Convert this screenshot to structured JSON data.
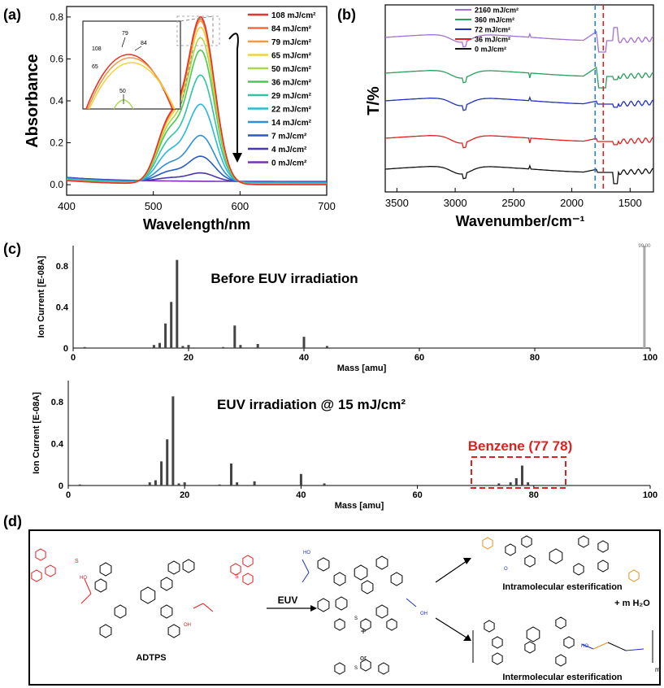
{
  "panel_labels": {
    "a": "(a)",
    "b": "(b)",
    "c": "(c)",
    "d": "(d)"
  },
  "chart_data": [
    {
      "id": "a",
      "type": "line",
      "xlabel": "Wavelength/nm",
      "ylabel": "Absorbance",
      "xlim": [
        400,
        700
      ],
      "ylim": [
        -0.05,
        0.85
      ],
      "xticks": [
        "400",
        "500",
        "600",
        "700"
      ],
      "yticks": [
        "0.0",
        "0.2",
        "0.4",
        "0.6",
        "0.8"
      ],
      "peak_nm": 555,
      "series": [
        {
          "name": "108 mJ/cm²",
          "color": "#e8322a",
          "peak": 0.79
        },
        {
          "name": "84 mJ/cm²",
          "color": "#f26b3a",
          "peak": 0.78
        },
        {
          "name": "79 mJ/cm²",
          "color": "#f39a3c",
          "peak": 0.77
        },
        {
          "name": "65 mJ/cm²",
          "color": "#f2d13c",
          "peak": 0.74
        },
        {
          "name": "50 mJ/cm²",
          "color": "#a6d94a",
          "peak": 0.69
        },
        {
          "name": "36 mJ/cm²",
          "color": "#4cc94f",
          "peak": 0.63
        },
        {
          "name": "29 mJ/cm²",
          "color": "#2ec4a4",
          "peak": 0.51
        },
        {
          "name": "22 mJ/cm²",
          "color": "#2bb9d8",
          "peak": 0.37
        },
        {
          "name": "14 mJ/cm²",
          "color": "#2f8fd6",
          "peak": 0.22
        },
        {
          "name": "7 mJ/cm²",
          "color": "#2a5cbf",
          "peak": 0.12
        },
        {
          "name": "4 mJ/cm²",
          "color": "#4b37b0",
          "peak": 0.04
        },
        {
          "name": "0 mJ/cm²",
          "color": "#7a2fb8",
          "peak": 0.0
        }
      ],
      "inset_labels": [
        "108",
        "79",
        "84",
        "65",
        "50"
      ]
    },
    {
      "id": "b",
      "type": "line",
      "xlabel": "Wavenumber/cm⁻¹",
      "ylabel": "T/%",
      "xlim": [
        3600,
        1300
      ],
      "xticks": [
        "3500",
        "3000",
        "2500",
        "2000",
        "1500"
      ],
      "markers_cm1": [
        1800,
        1730
      ],
      "series": [
        {
          "name": "2160 mJ/cm²",
          "color": "#a46fd8"
        },
        {
          "name": "360 mJ/cm²",
          "color": "#2a9e5c"
        },
        {
          "name": "72 mJ/cm²",
          "color": "#1f2fc4"
        },
        {
          "name": "36 mJ/cm²",
          "color": "#e01f1f"
        },
        {
          "name": "0 mJ/cm²",
          "color": "#111111"
        }
      ]
    },
    {
      "id": "c1",
      "type": "bar",
      "title": "Before EUV irradiation",
      "xlabel": "Mass [amu]",
      "ylabel": "Ion Current [E-08A]",
      "xlim": [
        0,
        100
      ],
      "ylim": [
        0,
        1.0
      ],
      "xticks": [
        "0",
        "20",
        "40",
        "60",
        "80",
        "100"
      ],
      "yticks": [
        "0",
        "0.4",
        "0.8"
      ],
      "peak_label": "99.00",
      "bars": [
        {
          "x": 2,
          "y": 0.01
        },
        {
          "x": 14,
          "y": 0.03
        },
        {
          "x": 15,
          "y": 0.05
        },
        {
          "x": 16,
          "y": 0.24
        },
        {
          "x": 17,
          "y": 0.45
        },
        {
          "x": 18,
          "y": 0.86
        },
        {
          "x": 19,
          "y": 0.02
        },
        {
          "x": 20,
          "y": 0.03
        },
        {
          "x": 26,
          "y": 0.01
        },
        {
          "x": 28,
          "y": 0.22
        },
        {
          "x": 29,
          "y": 0.03
        },
        {
          "x": 32,
          "y": 0.04
        },
        {
          "x": 40,
          "y": 0.11
        },
        {
          "x": 44,
          "y": 0.02
        },
        {
          "x": 99,
          "y": 1.0
        }
      ]
    },
    {
      "id": "c2",
      "type": "bar",
      "title": "EUV irradiation @ 15 mJ/cm²",
      "xlabel": "Mass [amu]",
      "ylabel": "Ion Current [E-08A]",
      "xlim": [
        0,
        100
      ],
      "ylim": [
        0,
        1.0
      ],
      "xticks": [
        "0",
        "20",
        "40",
        "60",
        "80",
        "100"
      ],
      "yticks": [
        "0",
        "0.4",
        "0.8"
      ],
      "annotation": "Benzene (77 78)",
      "bars": [
        {
          "x": 2,
          "y": 0.01
        },
        {
          "x": 14,
          "y": 0.03
        },
        {
          "x": 15,
          "y": 0.05
        },
        {
          "x": 16,
          "y": 0.23
        },
        {
          "x": 17,
          "y": 0.44
        },
        {
          "x": 18,
          "y": 0.85
        },
        {
          "x": 19,
          "y": 0.02
        },
        {
          "x": 20,
          "y": 0.03
        },
        {
          "x": 26,
          "y": 0.01
        },
        {
          "x": 28,
          "y": 0.21
        },
        {
          "x": 29,
          "y": 0.03
        },
        {
          "x": 32,
          "y": 0.04
        },
        {
          "x": 40,
          "y": 0.11
        },
        {
          "x": 44,
          "y": 0.02
        },
        {
          "x": 74,
          "y": 0.02
        },
        {
          "x": 76,
          "y": 0.03
        },
        {
          "x": 77,
          "y": 0.07
        },
        {
          "x": 78,
          "y": 0.19
        },
        {
          "x": 79,
          "y": 0.03
        }
      ]
    }
  ],
  "scheme": {
    "reactant": "ADTPS",
    "arrow_label": "EUV",
    "plus1": "+",
    "or": "or",
    "product_top": "Intramolecular esterification",
    "plus_water": "+  m  H₂O",
    "product_bottom": "Intermolecular esterification",
    "m": "m",
    "atoms": {
      "S": "S",
      "O": "O",
      "OH": "OH",
      "HO": "HO"
    }
  },
  "colors": {
    "accent": "#e01f1f",
    "blue": "#1f2fc4",
    "orange": "#e8901c"
  }
}
